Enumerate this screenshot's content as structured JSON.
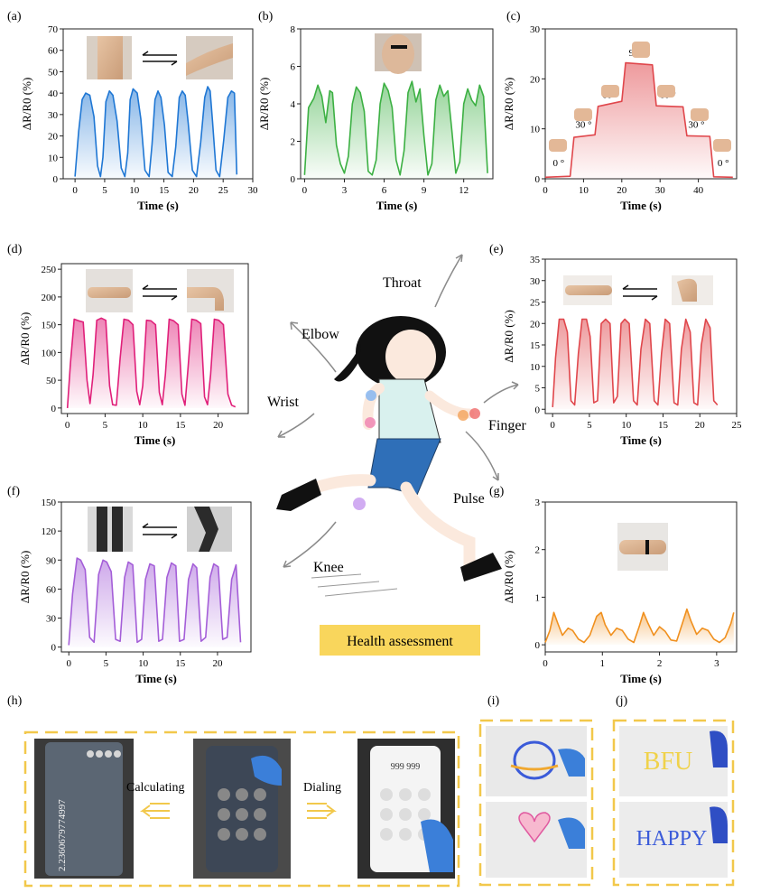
{
  "panel_labels": [
    "(a)",
    "(b)",
    "(c)",
    "(d)",
    "(e)",
    "(f)",
    "(g)",
    "(h)",
    "(i)",
    "(j)"
  ],
  "body_labels": {
    "throat": "Throat",
    "elbow": "Elbow",
    "wrist": "Wrist",
    "finger": "Finger",
    "pulse": "Pulse",
    "knee": "Knee"
  },
  "health_label": "Health assessment",
  "health_box_color": "#f9d65c",
  "phone_actions": {
    "left": "Calculating",
    "right": "Dialing"
  },
  "phone_screens": {
    "calculator": "2.2360679774997",
    "dialer": "999 999",
    "draw_1": "BFU",
    "draw_2": "HAPPY"
  },
  "chart_data": [
    {
      "id": "a",
      "type": "area",
      "color": "#1f77d4",
      "xlabel": "Time (s)",
      "ylabel": "ΔR/R0 (%)",
      "xlim": [
        -2,
        30
      ],
      "ylim": [
        0,
        70
      ],
      "xticks": [
        0,
        5,
        10,
        15,
        20,
        25,
        30
      ],
      "yticks": [
        0,
        10,
        20,
        30,
        40,
        50,
        60,
        70
      ],
      "x": [
        0,
        0.6,
        1.2,
        1.8,
        2.5,
        3.2,
        3.8,
        4.3,
        4.7,
        5.2,
        5.8,
        6.4,
        7.1,
        7.8,
        8.4,
        8.9,
        9.3,
        9.8,
        10.5,
        11.1,
        11.8,
        12.5,
        13.0,
        13.5,
        14.0,
        14.5,
        15.1,
        15.7,
        16.4,
        17.0,
        17.6,
        18.1,
        18.6,
        19.1,
        19.8,
        20.5,
        21.2,
        21.9,
        22.4,
        22.8,
        23.2,
        23.8,
        24.4,
        25.1,
        25.8,
        26.4,
        26.9,
        27.3
      ],
      "y": [
        1,
        22,
        37,
        40,
        39,
        29,
        6,
        1,
        10,
        36,
        41,
        39,
        27,
        5,
        1,
        12,
        37,
        42,
        40,
        28,
        4,
        1,
        16,
        37,
        41,
        38,
        25,
        3,
        1,
        15,
        38,
        41,
        39,
        26,
        4,
        1,
        17,
        38,
        43,
        41,
        27,
        4,
        1,
        18,
        38,
        41,
        40,
        2
      ],
      "annotations": []
    },
    {
      "id": "b",
      "type": "area",
      "color": "#3cb043",
      "xlabel": "Time (s)",
      "ylabel": "ΔR/R0 (%)",
      "xlim": [
        -0.3,
        14.2
      ],
      "ylim": [
        0,
        8
      ],
      "xticks": [
        0,
        3,
        6,
        9,
        12
      ],
      "yticks": [
        0,
        2,
        4,
        6,
        8
      ],
      "x": [
        0,
        0.3,
        0.7,
        1.0,
        1.3,
        1.6,
        1.9,
        2.1,
        2.4,
        2.7,
        3.0,
        3.3,
        3.6,
        3.9,
        4.2,
        4.5,
        4.8,
        5.1,
        5.4,
        5.7,
        6.0,
        6.3,
        6.6,
        6.9,
        7.2,
        7.5,
        7.8,
        8.1,
        8.4,
        8.7,
        9.0,
        9.3,
        9.6,
        9.9,
        10.2,
        10.5,
        10.8,
        11.1,
        11.4,
        11.7,
        12.0,
        12.3,
        12.6,
        12.9,
        13.2,
        13.5,
        13.8
      ],
      "y": [
        0.2,
        3.8,
        4.3,
        5.0,
        4.4,
        3.0,
        4.7,
        4.6,
        1.8,
        0.8,
        0.3,
        1.2,
        4.0,
        4.9,
        4.6,
        3.6,
        0.4,
        0.2,
        1.0,
        4.0,
        5.1,
        4.7,
        3.8,
        1.0,
        0.2,
        1.5,
        4.6,
        5.2,
        4.1,
        4.8,
        2.3,
        0.2,
        0.8,
        4.2,
        5.0,
        4.4,
        4.7,
        2.6,
        0.3,
        0.9,
        4.0,
        4.8,
        4.2,
        3.9,
        5.0,
        4.4,
        0.3
      ],
      "annotations": []
    },
    {
      "id": "c",
      "type": "area",
      "color": "#e0474c",
      "xlabel": "Time (s)",
      "ylabel": "ΔR/R0 (%)",
      "xlim": [
        0,
        50
      ],
      "ylim": [
        0,
        30
      ],
      "xticks": [
        0,
        10,
        20,
        30,
        40
      ],
      "yticks": [
        0,
        10,
        20,
        30
      ],
      "x": [
        0,
        6.5,
        7.5,
        13,
        13.8,
        20,
        21,
        28,
        29,
        36,
        37,
        43,
        44,
        49
      ],
      "y": [
        0.3,
        0.5,
        8.3,
        8.8,
        14.5,
        15.5,
        23.2,
        22.8,
        14.6,
        14.4,
        8.6,
        8.5,
        0.4,
        0.3
      ],
      "annotations": [
        {
          "x": 3.5,
          "y": 2.5,
          "text": "0 °"
        },
        {
          "x": 10,
          "y": 10.2,
          "text": "30 °"
        },
        {
          "x": 17,
          "y": 16.2,
          "text": "60 °"
        },
        {
          "x": 24,
          "y": 24.6,
          "text": "90 °"
        },
        {
          "x": 32,
          "y": 16.2,
          "text": "60 °"
        },
        {
          "x": 39.5,
          "y": 10.2,
          "text": "30 °"
        },
        {
          "x": 46.5,
          "y": 2.5,
          "text": "0 °"
        }
      ]
    },
    {
      "id": "d",
      "type": "area",
      "color": "#e0207a",
      "xlabel": "Time (s)",
      "ylabel": "ΔR/R0 (%)",
      "xlim": [
        -0.8,
        24
      ],
      "ylim": [
        -10,
        260
      ],
      "xticks": [
        0,
        5,
        10,
        15,
        20
      ],
      "yticks": [
        0,
        50,
        100,
        150,
        200,
        250
      ],
      "x": [
        0,
        0.4,
        0.9,
        1.5,
        2.1,
        2.6,
        3.0,
        3.4,
        3.9,
        4.5,
        5.1,
        5.6,
        6.0,
        6.5,
        7.0,
        7.5,
        8.1,
        8.7,
        9.2,
        9.6,
        10.0,
        10.5,
        11.1,
        11.7,
        12.2,
        12.6,
        13.0,
        13.5,
        14.1,
        14.7,
        15.2,
        15.6,
        16.0,
        16.5,
        17.1,
        17.7,
        18.2,
        18.6,
        19.0,
        19.5,
        20.1,
        20.7,
        21.3,
        21.8,
        22.3
      ],
      "y": [
        0,
        80,
        160,
        157,
        155,
        50,
        8,
        60,
        158,
        162,
        158,
        40,
        6,
        5,
        90,
        160,
        158,
        150,
        30,
        6,
        40,
        158,
        157,
        150,
        28,
        6,
        60,
        160,
        157,
        150,
        25,
        5,
        70,
        160,
        158,
        152,
        20,
        6,
        60,
        160,
        158,
        150,
        25,
        5,
        2
      ],
      "annotations": []
    },
    {
      "id": "e",
      "type": "area",
      "color": "#e0474c",
      "xlabel": "Time (s)",
      "ylabel": "ΔR/R0 (%)",
      "xlim": [
        -1,
        25
      ],
      "ylim": [
        -1,
        35
      ],
      "xticks": [
        0,
        5,
        10,
        15,
        20,
        25
      ],
      "yticks": [
        0,
        5,
        10,
        15,
        20,
        25,
        30,
        35
      ],
      "x": [
        0,
        0.4,
        0.9,
        1.5,
        2.0,
        2.5,
        3.0,
        3.5,
        4.0,
        4.6,
        5.1,
        5.6,
        6.1,
        6.6,
        7.2,
        7.8,
        8.3,
        8.8,
        9.3,
        9.8,
        10.4,
        11.0,
        11.5,
        12.0,
        12.6,
        13.2,
        13.8,
        14.3,
        14.8,
        15.3,
        15.9,
        16.5,
        17.0,
        17.5,
        18.1,
        18.7,
        19.2,
        19.7,
        20.2,
        20.8,
        21.4,
        21.9,
        22.4
      ],
      "y": [
        0.5,
        12,
        21,
        21,
        18,
        2,
        1,
        13,
        21,
        21,
        17,
        1.5,
        2,
        20,
        21,
        20,
        1.5,
        3,
        20,
        21,
        20,
        2,
        1,
        14,
        21,
        20,
        2,
        1,
        13,
        21,
        20,
        1.5,
        1,
        14,
        21,
        18,
        1.5,
        1,
        15,
        21,
        19,
        2,
        1
      ],
      "annotations": []
    },
    {
      "id": "f",
      "type": "area",
      "color": "#a45ed8",
      "xlabel": "Time (s)",
      "ylabel": "ΔR/R0 (%)",
      "xlim": [
        -1,
        24.5
      ],
      "ylim": [
        -5,
        150
      ],
      "xticks": [
        0,
        5,
        10,
        15,
        20
      ],
      "yticks": [
        0,
        30,
        60,
        90,
        120,
        150
      ],
      "x": [
        0,
        0.5,
        1.1,
        1.6,
        2.2,
        2.8,
        3.4,
        4.0,
        4.6,
        5.1,
        5.7,
        6.3,
        6.9,
        7.5,
        8.0,
        8.6,
        9.2,
        9.8,
        10.3,
        10.9,
        11.5,
        12.1,
        12.6,
        13.2,
        13.8,
        14.4,
        14.9,
        15.5,
        16.1,
        16.7,
        17.2,
        17.8,
        18.4,
        19.0,
        19.5,
        20.1,
        20.7,
        21.3,
        21.9,
        22.5,
        23.1
      ],
      "y": [
        2,
        55,
        92,
        90,
        80,
        10,
        5,
        75,
        90,
        88,
        78,
        8,
        6,
        72,
        88,
        85,
        5,
        8,
        70,
        86,
        84,
        6,
        8,
        72,
        87,
        84,
        6,
        8,
        70,
        86,
        82,
        6,
        10,
        72,
        86,
        83,
        8,
        10,
        70,
        85,
        5
      ],
      "annotations": []
    },
    {
      "id": "g",
      "type": "area",
      "color": "#f0901e",
      "xlabel": "Time (s)",
      "ylabel": "ΔR/R0 (%)",
      "xlim": [
        0,
        3.35
      ],
      "ylim": [
        -0.15,
        3
      ],
      "xticks": [
        0,
        1,
        2,
        3
      ],
      "yticks": [
        0,
        1,
        2,
        3
      ],
      "x": [
        0,
        0.08,
        0.15,
        0.22,
        0.3,
        0.4,
        0.48,
        0.58,
        0.68,
        0.78,
        0.9,
        0.98,
        1.05,
        1.15,
        1.25,
        1.35,
        1.45,
        1.55,
        1.65,
        1.72,
        1.8,
        1.9,
        2.0,
        2.1,
        2.2,
        2.3,
        2.4,
        2.48,
        2.55,
        2.65,
        2.75,
        2.85,
        2.95,
        3.05,
        3.15,
        3.25,
        3.3
      ],
      "y": [
        0.05,
        0.3,
        0.68,
        0.45,
        0.2,
        0.35,
        0.3,
        0.12,
        0.05,
        0.2,
        0.6,
        0.68,
        0.42,
        0.2,
        0.35,
        0.3,
        0.12,
        0.05,
        0.4,
        0.68,
        0.45,
        0.2,
        0.38,
        0.28,
        0.1,
        0.08,
        0.45,
        0.75,
        0.5,
        0.22,
        0.35,
        0.3,
        0.12,
        0.05,
        0.15,
        0.45,
        0.68
      ],
      "annotations": []
    }
  ]
}
